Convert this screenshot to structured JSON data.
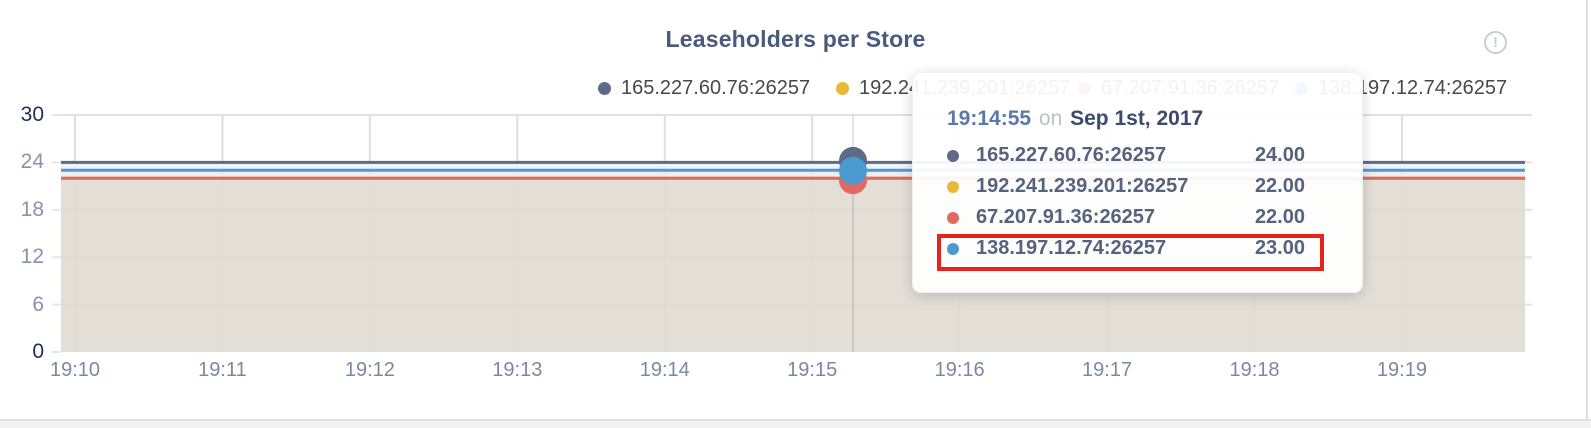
{
  "card": {
    "title": "Leaseholders per Store"
  },
  "info_icon": {
    "glyph": "!"
  },
  "legend": {
    "items": [
      {
        "label": "165.227.60.76:26257",
        "color": "#5d6b88"
      },
      {
        "label": "192.241.239.201:26257",
        "color": "#eab839"
      },
      {
        "label": "67.207.91.36:26257",
        "color": "#e2695f"
      },
      {
        "label": "138.197.12.74:26257",
        "color": "#4b9bd2"
      }
    ]
  },
  "tooltip": {
    "time": "19:14:55",
    "separator": "on",
    "date": "Sep 1st, 2017",
    "rows": [
      {
        "name": "165.227.60.76:26257",
        "value": "24.00",
        "color": "#5d6b88",
        "highlighted": false
      },
      {
        "name": "192.241.239.201:26257",
        "value": "22.00",
        "color": "#eab839",
        "highlighted": false
      },
      {
        "name": "67.207.91.36:26257",
        "value": "22.00",
        "color": "#e2695f",
        "highlighted": false
      },
      {
        "name": "138.197.12.74:26257",
        "value": "23.00",
        "color": "#4b9bd2",
        "highlighted": true
      }
    ],
    "highlight_color": "#e8231d"
  },
  "chart_data": {
    "type": "line",
    "title": "Leaseholders per Store",
    "x_labels": [
      "19:10",
      "19:11",
      "19:12",
      "19:13",
      "19:14",
      "19:15",
      "19:16",
      "19:17",
      "19:18",
      "19:19"
    ],
    "ylim": [
      0,
      30
    ],
    "yticks": [
      0,
      6,
      12,
      18,
      24,
      30
    ],
    "emphasized_yticks": [
      0,
      30
    ],
    "grid": true,
    "legend_position": "top",
    "series": [
      {
        "name": "165.227.60.76:26257",
        "color": "#5d6b88",
        "value": 24
      },
      {
        "name": "192.241.239.201:26257",
        "color": "#eab839",
        "value": 22
      },
      {
        "name": "67.207.91.36:26257",
        "color": "#e2695f",
        "value": 22
      },
      {
        "name": "138.197.12.74:26257",
        "color": "#4b9bd2",
        "value": 23
      }
    ],
    "hover": {
      "time": "19:14:55",
      "values": [
        24,
        22,
        22,
        23
      ]
    },
    "area_fill_color": "#e1dbd3",
    "band_colors": [
      "#eef2f7",
      "#ecebf1"
    ]
  }
}
